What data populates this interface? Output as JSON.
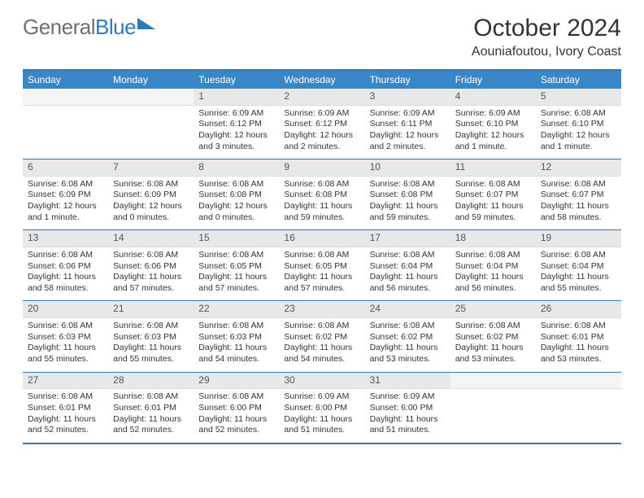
{
  "logo": {
    "word1": "General",
    "word2": "Blue"
  },
  "title": "October 2024",
  "location": "Aouniafoutou, Ivory Coast",
  "colors": {
    "header_bg": "#3a87c8",
    "border": "#2f79b9",
    "daynum_bg": "#e8e8e8",
    "text": "#333333"
  },
  "day_names": [
    "Sunday",
    "Monday",
    "Tuesday",
    "Wednesday",
    "Thursday",
    "Friday",
    "Saturday"
  ],
  "weeks": [
    [
      {
        "n": "",
        "empty": true
      },
      {
        "n": "",
        "empty": true
      },
      {
        "n": "1",
        "sunrise": "Sunrise: 6:09 AM",
        "sunset": "Sunset: 6:12 PM",
        "daylight": "Daylight: 12 hours and 3 minutes."
      },
      {
        "n": "2",
        "sunrise": "Sunrise: 6:09 AM",
        "sunset": "Sunset: 6:12 PM",
        "daylight": "Daylight: 12 hours and 2 minutes."
      },
      {
        "n": "3",
        "sunrise": "Sunrise: 6:09 AM",
        "sunset": "Sunset: 6:11 PM",
        "daylight": "Daylight: 12 hours and 2 minutes."
      },
      {
        "n": "4",
        "sunrise": "Sunrise: 6:09 AM",
        "sunset": "Sunset: 6:10 PM",
        "daylight": "Daylight: 12 hours and 1 minute."
      },
      {
        "n": "5",
        "sunrise": "Sunrise: 6:08 AM",
        "sunset": "Sunset: 6:10 PM",
        "daylight": "Daylight: 12 hours and 1 minute."
      }
    ],
    [
      {
        "n": "6",
        "sunrise": "Sunrise: 6:08 AM",
        "sunset": "Sunset: 6:09 PM",
        "daylight": "Daylight: 12 hours and 1 minute."
      },
      {
        "n": "7",
        "sunrise": "Sunrise: 6:08 AM",
        "sunset": "Sunset: 6:09 PM",
        "daylight": "Daylight: 12 hours and 0 minutes."
      },
      {
        "n": "8",
        "sunrise": "Sunrise: 6:08 AM",
        "sunset": "Sunset: 6:08 PM",
        "daylight": "Daylight: 12 hours and 0 minutes."
      },
      {
        "n": "9",
        "sunrise": "Sunrise: 6:08 AM",
        "sunset": "Sunset: 6:08 PM",
        "daylight": "Daylight: 11 hours and 59 minutes."
      },
      {
        "n": "10",
        "sunrise": "Sunrise: 6:08 AM",
        "sunset": "Sunset: 6:08 PM",
        "daylight": "Daylight: 11 hours and 59 minutes."
      },
      {
        "n": "11",
        "sunrise": "Sunrise: 6:08 AM",
        "sunset": "Sunset: 6:07 PM",
        "daylight": "Daylight: 11 hours and 59 minutes."
      },
      {
        "n": "12",
        "sunrise": "Sunrise: 6:08 AM",
        "sunset": "Sunset: 6:07 PM",
        "daylight": "Daylight: 11 hours and 58 minutes."
      }
    ],
    [
      {
        "n": "13",
        "sunrise": "Sunrise: 6:08 AM",
        "sunset": "Sunset: 6:06 PM",
        "daylight": "Daylight: 11 hours and 58 minutes."
      },
      {
        "n": "14",
        "sunrise": "Sunrise: 6:08 AM",
        "sunset": "Sunset: 6:06 PM",
        "daylight": "Daylight: 11 hours and 57 minutes."
      },
      {
        "n": "15",
        "sunrise": "Sunrise: 6:08 AM",
        "sunset": "Sunset: 6:05 PM",
        "daylight": "Daylight: 11 hours and 57 minutes."
      },
      {
        "n": "16",
        "sunrise": "Sunrise: 6:08 AM",
        "sunset": "Sunset: 6:05 PM",
        "daylight": "Daylight: 11 hours and 57 minutes."
      },
      {
        "n": "17",
        "sunrise": "Sunrise: 6:08 AM",
        "sunset": "Sunset: 6:04 PM",
        "daylight": "Daylight: 11 hours and 56 minutes."
      },
      {
        "n": "18",
        "sunrise": "Sunrise: 6:08 AM",
        "sunset": "Sunset: 6:04 PM",
        "daylight": "Daylight: 11 hours and 56 minutes."
      },
      {
        "n": "19",
        "sunrise": "Sunrise: 6:08 AM",
        "sunset": "Sunset: 6:04 PM",
        "daylight": "Daylight: 11 hours and 55 minutes."
      }
    ],
    [
      {
        "n": "20",
        "sunrise": "Sunrise: 6:08 AM",
        "sunset": "Sunset: 6:03 PM",
        "daylight": "Daylight: 11 hours and 55 minutes."
      },
      {
        "n": "21",
        "sunrise": "Sunrise: 6:08 AM",
        "sunset": "Sunset: 6:03 PM",
        "daylight": "Daylight: 11 hours and 55 minutes."
      },
      {
        "n": "22",
        "sunrise": "Sunrise: 6:08 AM",
        "sunset": "Sunset: 6:03 PM",
        "daylight": "Daylight: 11 hours and 54 minutes."
      },
      {
        "n": "23",
        "sunrise": "Sunrise: 6:08 AM",
        "sunset": "Sunset: 6:02 PM",
        "daylight": "Daylight: 11 hours and 54 minutes."
      },
      {
        "n": "24",
        "sunrise": "Sunrise: 6:08 AM",
        "sunset": "Sunset: 6:02 PM",
        "daylight": "Daylight: 11 hours and 53 minutes."
      },
      {
        "n": "25",
        "sunrise": "Sunrise: 6:08 AM",
        "sunset": "Sunset: 6:02 PM",
        "daylight": "Daylight: 11 hours and 53 minutes."
      },
      {
        "n": "26",
        "sunrise": "Sunrise: 6:08 AM",
        "sunset": "Sunset: 6:01 PM",
        "daylight": "Daylight: 11 hours and 53 minutes."
      }
    ],
    [
      {
        "n": "27",
        "sunrise": "Sunrise: 6:08 AM",
        "sunset": "Sunset: 6:01 PM",
        "daylight": "Daylight: 11 hours and 52 minutes."
      },
      {
        "n": "28",
        "sunrise": "Sunrise: 6:08 AM",
        "sunset": "Sunset: 6:01 PM",
        "daylight": "Daylight: 11 hours and 52 minutes."
      },
      {
        "n": "29",
        "sunrise": "Sunrise: 6:08 AM",
        "sunset": "Sunset: 6:00 PM",
        "daylight": "Daylight: 11 hours and 52 minutes."
      },
      {
        "n": "30",
        "sunrise": "Sunrise: 6:09 AM",
        "sunset": "Sunset: 6:00 PM",
        "daylight": "Daylight: 11 hours and 51 minutes."
      },
      {
        "n": "31",
        "sunrise": "Sunrise: 6:09 AM",
        "sunset": "Sunset: 6:00 PM",
        "daylight": "Daylight: 11 hours and 51 minutes."
      },
      {
        "n": "",
        "empty": true
      },
      {
        "n": "",
        "empty": true
      }
    ]
  ]
}
